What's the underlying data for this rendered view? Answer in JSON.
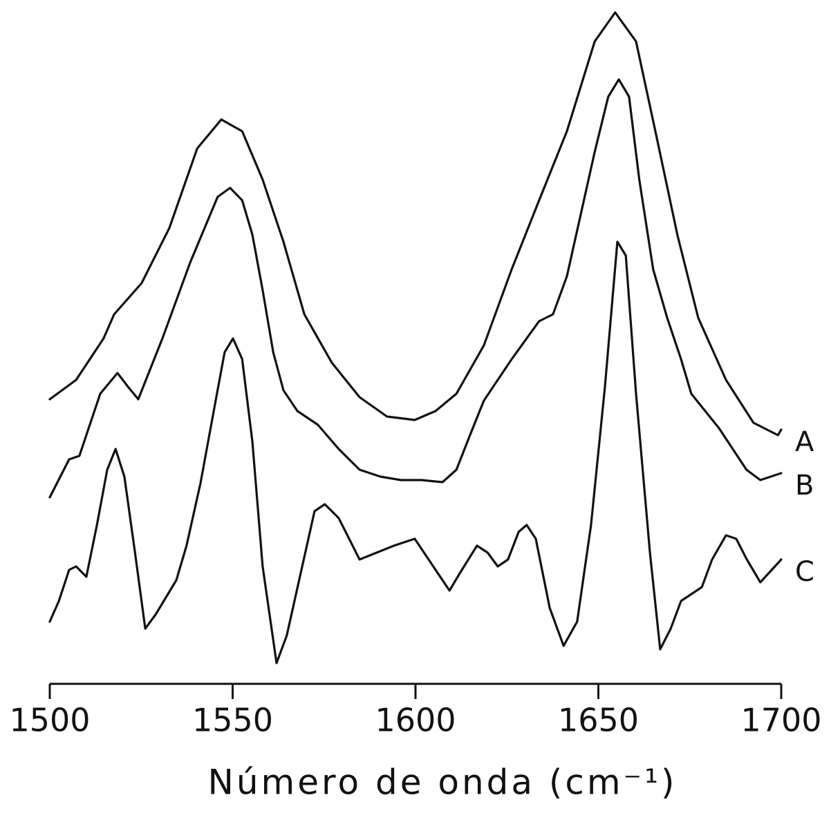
{
  "chart_data": {
    "type": "line",
    "x_label": "Número de onda (cm⁻¹)",
    "xlim": [
      1500,
      1700
    ],
    "xticks": [
      1500,
      1550,
      1600,
      1650,
      1700
    ],
    "ylim": [
      0,
      100
    ],
    "series": [
      {
        "name": "A",
        "color": "#111111",
        "x": [
          1500,
          1507.2,
          1514.7,
          1517.6,
          1525.1,
          1532.7,
          1540.3,
          1546.9,
          1552.6,
          1558.2,
          1563.9,
          1569.6,
          1577.1,
          1584.7,
          1592.2,
          1599.8,
          1605.5,
          1611.2,
          1618.7,
          1626.3,
          1633.8,
          1641.4,
          1649.0,
          1654.6,
          1660.3,
          1666.0,
          1671.6,
          1677.3,
          1684.9,
          1692.4,
          1699.1,
          1700
        ],
        "values": [
          42.2,
          45,
          51,
          54.5,
          59,
          67,
          78.5,
          82.7,
          81,
          74,
          65,
          54.5,
          47.5,
          42.5,
          39.7,
          39.2,
          40.5,
          43,
          50,
          61,
          71,
          81,
          94,
          98.2,
          94,
          80,
          66,
          54,
          45,
          38.8,
          37,
          37.8
        ]
      },
      {
        "name": "B",
        "color": "#111111",
        "x": [
          1500,
          1505.3,
          1508.1,
          1513.8,
          1518.5,
          1521.4,
          1524.2,
          1530.8,
          1538.4,
          1545.9,
          1549.3,
          1552.6,
          1555.4,
          1558.2,
          1561.1,
          1563.9,
          1567.7,
          1573.3,
          1579.0,
          1584.7,
          1590.4,
          1596.0,
          1601.7,
          1607.4,
          1611.2,
          1614.9,
          1618.7,
          1626.3,
          1633.8,
          1637.6,
          1641.4,
          1645.2,
          1649.0,
          1652.7,
          1655.6,
          1658.4,
          1661.2,
          1665.0,
          1668.8,
          1672.6,
          1675.4,
          1683.0,
          1690.5,
          1694.3,
          1700
        ],
        "values": [
          28,
          33.5,
          34,
          43,
          46,
          44,
          42.2,
          51,
          62,
          71.5,
          72.8,
          71,
          66,
          58,
          49,
          43.5,
          40.5,
          38.5,
          35,
          32,
          31,
          30.5,
          30.5,
          30.2,
          32,
          37,
          42,
          48,
          53.5,
          54.5,
          60,
          69,
          78,
          86,
          88.5,
          86,
          74,
          61,
          54,
          48,
          43,
          38,
          32,
          30.5,
          31.5
        ]
      },
      {
        "name": "C",
        "color": "#111111",
        "x": [
          1500,
          1502.5,
          1505.3,
          1507.2,
          1510.0,
          1512.9,
          1515.7,
          1518.0,
          1520.4,
          1523.3,
          1526.1,
          1528.9,
          1534.6,
          1537.4,
          1541.2,
          1545.0,
          1547.8,
          1550.1,
          1552.6,
          1555.4,
          1558.2,
          1562.0,
          1564.8,
          1568.6,
          1572.4,
          1575.2,
          1579.0,
          1584.7,
          1594.1,
          1599.8,
          1603.6,
          1609.3,
          1612.1,
          1616.8,
          1619.7,
          1622.5,
          1625.3,
          1628.2,
          1630.4,
          1632.9,
          1636.7,
          1640.5,
          1644.2,
          1648.0,
          1651.8,
          1655.2,
          1657.5,
          1660.3,
          1664.1,
          1666.9,
          1669.8,
          1672.6,
          1678.3,
          1681.1,
          1684.9,
          1687.7,
          1690.6,
          1694.3,
          1700
        ],
        "values": [
          10,
          13,
          17.5,
          18,
          16.5,
          24,
          32,
          35,
          31,
          20,
          9,
          11,
          16,
          21,
          30,
          41,
          49,
          51,
          48,
          36,
          18,
          4,
          8,
          17,
          26,
          27,
          25,
          19,
          21,
          22,
          19,
          14.5,
          17,
          21,
          20,
          18,
          19,
          23,
          24,
          22,
          12,
          6.5,
          10,
          24,
          44,
          65,
          63,
          43,
          20,
          6,
          9,
          13,
          15,
          19,
          22.5,
          22,
          19,
          15.7,
          19
        ]
      }
    ]
  }
}
